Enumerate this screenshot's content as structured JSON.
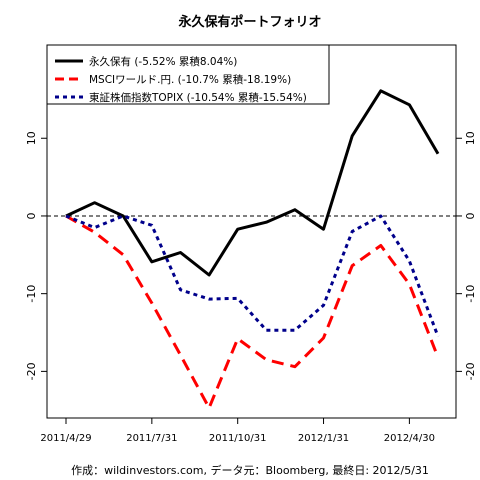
{
  "chart_data": {
    "type": "line",
    "title": "永久保有ポートフォリオ",
    "footer": "作成：wildinvestors.com, データ元：Bloomberg, 最終日: 2012/5/31",
    "xlabel": "",
    "ylabel": "",
    "x_ticks": [
      "2011/4/29",
      "2011/7/31",
      "2011/10/31",
      "2012/1/31",
      "2012/4/30"
    ],
    "y_ticks": [
      "10",
      "0",
      "-10",
      "-20"
    ],
    "ylim": [
      -26,
      22
    ],
    "reference_line": 0,
    "legend_position": "top-left",
    "series": [
      {
        "name": "永久保有 (-5.52% 累積8.04%)",
        "color": "#000000",
        "dash": "solid",
        "values": [
          0,
          1.7,
          0,
          -5.9,
          -4.7,
          -7.6,
          -1.7,
          -0.8,
          0.8,
          -1.7,
          10.3,
          16.1,
          14.3,
          8.0
        ]
      },
      {
        "name": "MSCIワールド.円. (-10.7% 累積-18.19%)",
        "color": "#ff0000",
        "dash": "dashed",
        "values": [
          0,
          -2.1,
          -5.0,
          -11.2,
          -17.9,
          -24.7,
          -15.8,
          -18.5,
          -19.4,
          -15.7,
          -6.4,
          -3.8,
          -8.8,
          -18.2
        ]
      },
      {
        "name": "東証株価指数TOPIX (-10.54% 累積-15.54%)",
        "color": "#00008b",
        "dash": "dotted",
        "values": [
          0,
          -1.5,
          0,
          -1.2,
          -9.5,
          -10.7,
          -10.6,
          -14.7,
          -14.7,
          -11.5,
          -2.0,
          0,
          -5.8,
          -15.5
        ]
      }
    ]
  }
}
